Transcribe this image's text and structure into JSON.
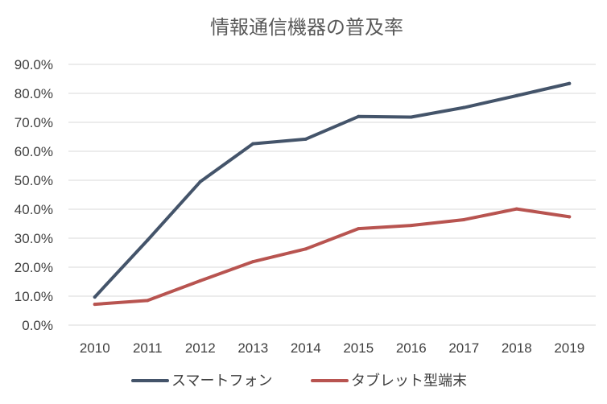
{
  "chart_data": {
    "type": "line",
    "title": "情報通信機器の普及率",
    "xlabel": "",
    "ylabel": "",
    "categories": [
      "2010",
      "2011",
      "2012",
      "2013",
      "2014",
      "2015",
      "2016",
      "2017",
      "2018",
      "2019"
    ],
    "y_ticks": [
      "0.0%",
      "10.0%",
      "20.0%",
      "30.0%",
      "40.0%",
      "50.0%",
      "60.0%",
      "70.0%",
      "80.0%",
      "90.0%"
    ],
    "ylim": [
      0,
      90
    ],
    "grid": true,
    "legend_position": "bottom",
    "series": [
      {
        "name": "スマートフォン",
        "color": "#44546a",
        "values": [
          9.7,
          29.3,
          49.5,
          62.6,
          64.2,
          72.0,
          71.8,
          75.1,
          79.2,
          83.4
        ]
      },
      {
        "name": "タブレット型端末",
        "color": "#b85450",
        "values": [
          7.2,
          8.5,
          15.3,
          21.9,
          26.3,
          33.3,
          34.4,
          36.4,
          40.1,
          37.4
        ]
      }
    ]
  }
}
